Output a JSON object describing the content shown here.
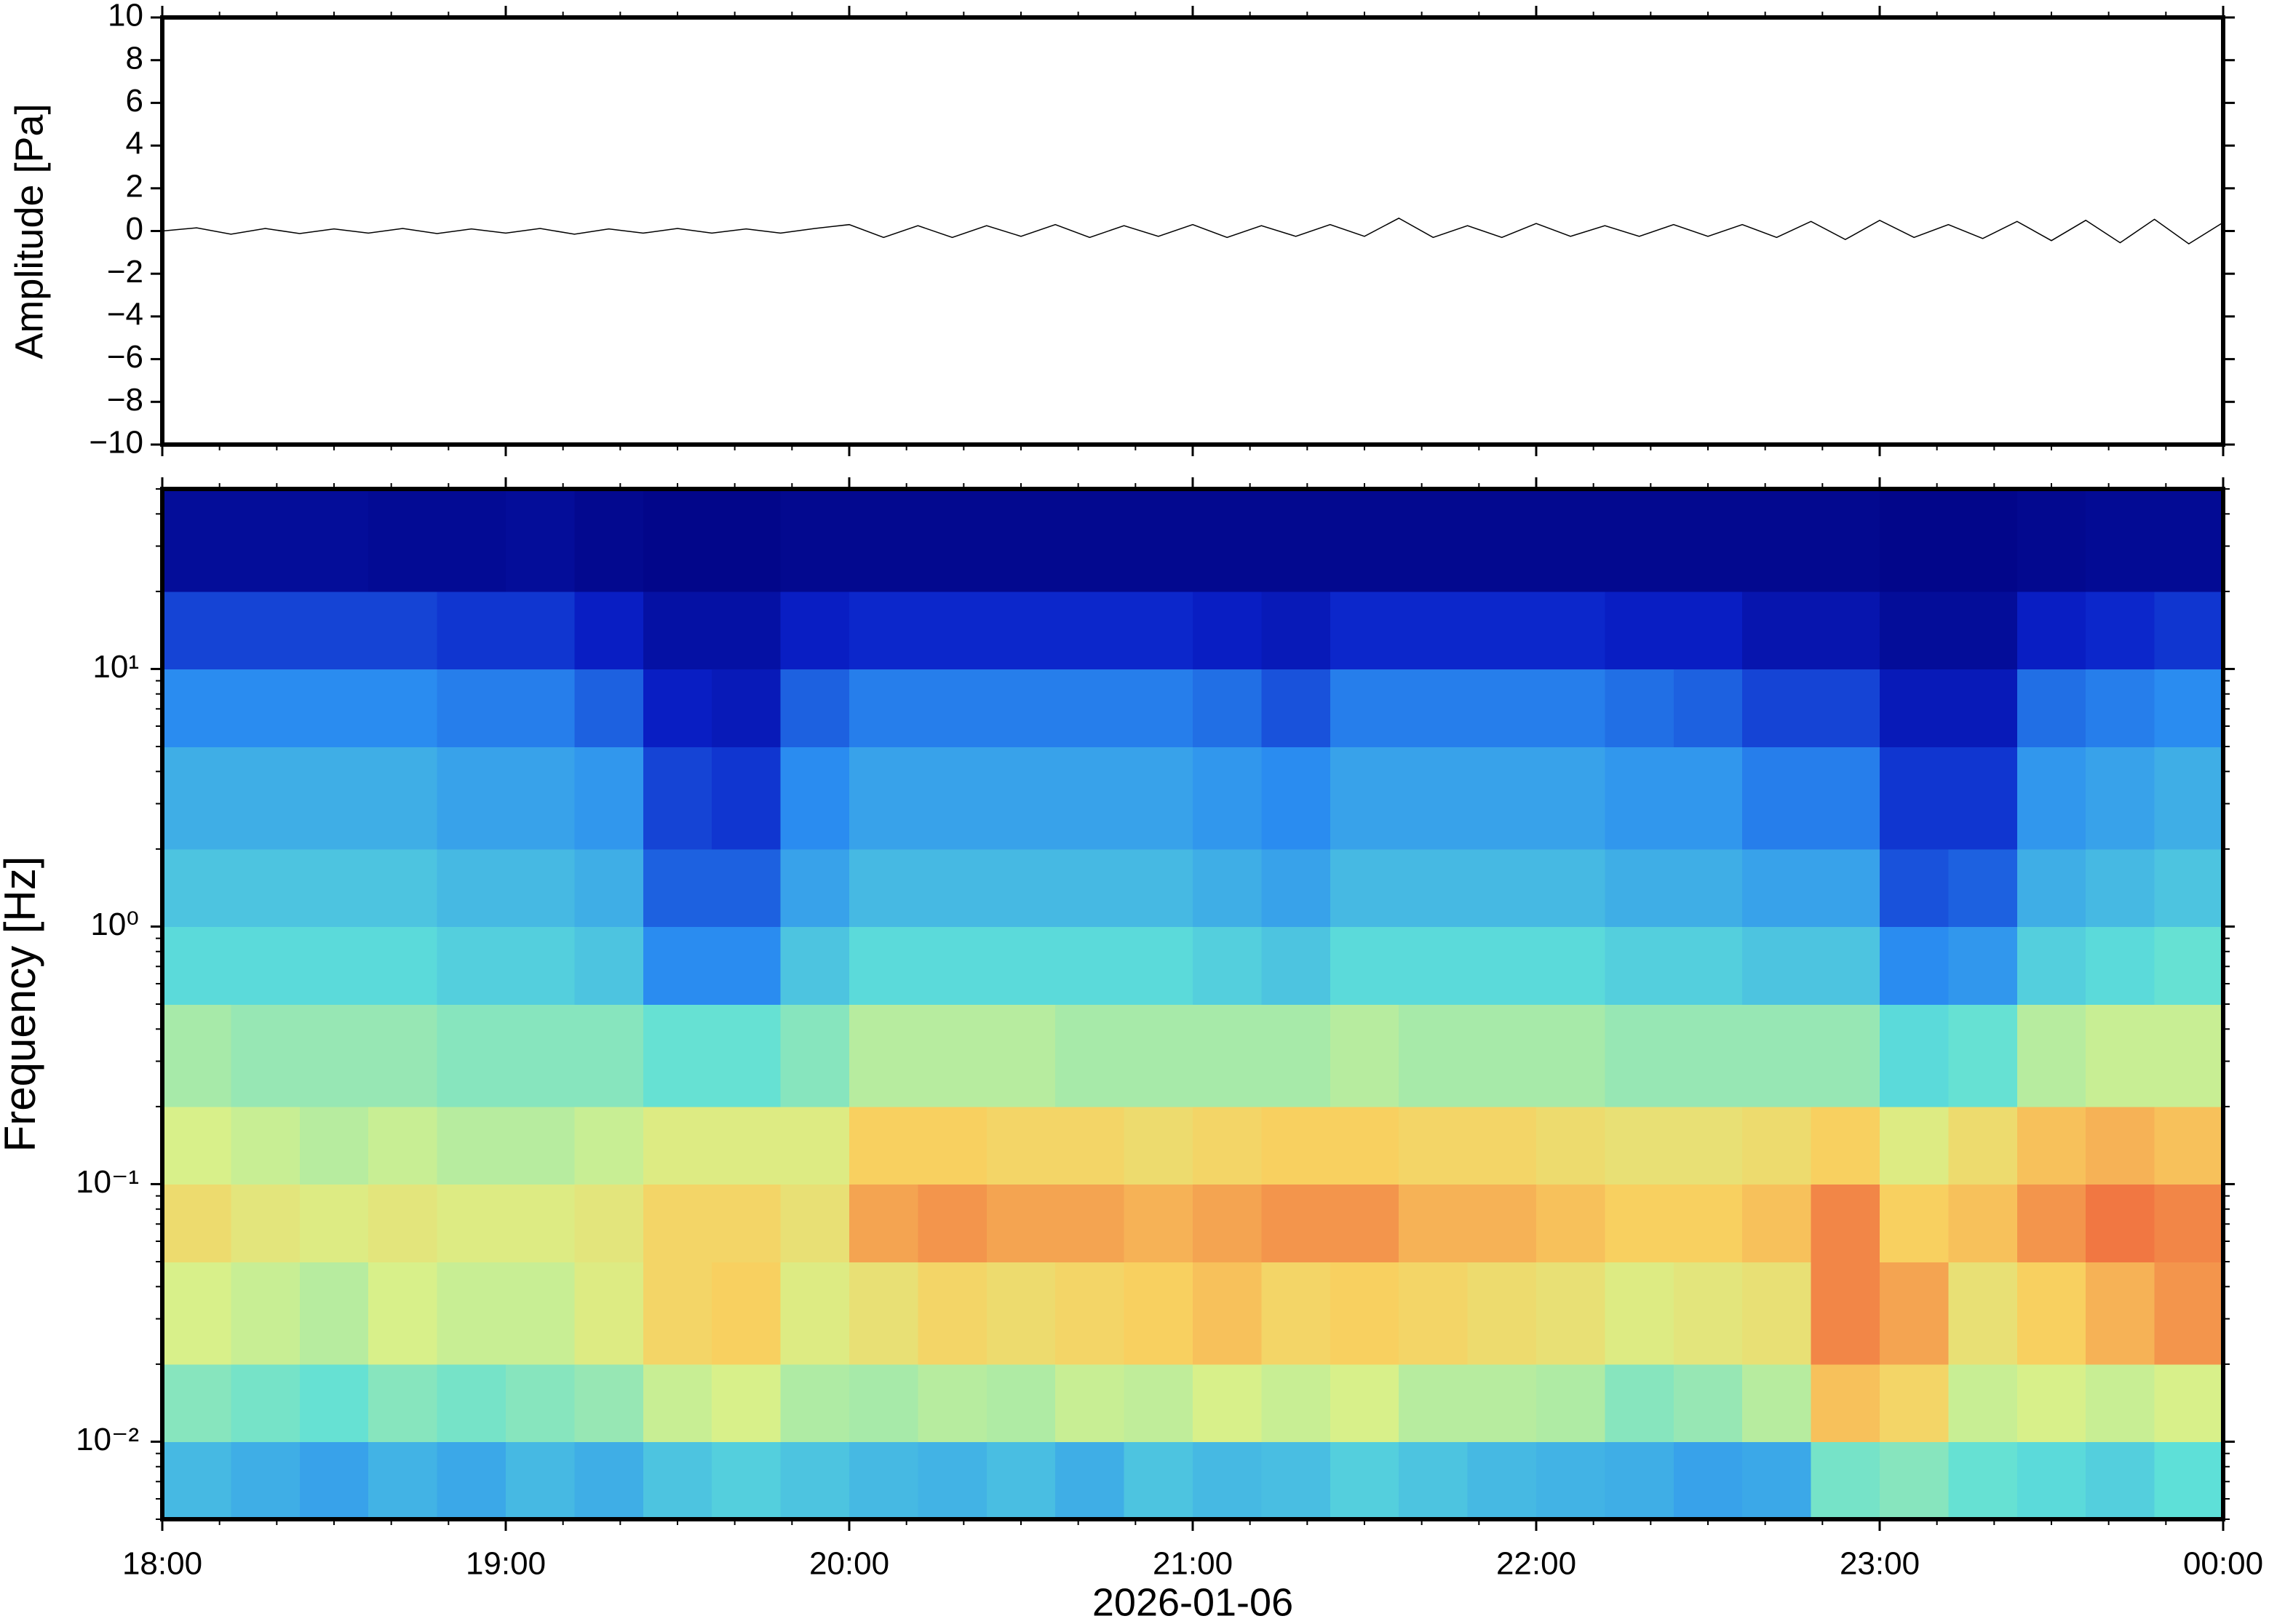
{
  "chart_data": [
    {
      "type": "line",
      "ylabel": "Amplitude [Pa]",
      "ylim": [
        -10,
        10
      ],
      "yticks": [
        {
          "value": -10,
          "label": "−10"
        },
        {
          "value": -8,
          "label": "−8"
        },
        {
          "value": -6,
          "label": "−6"
        },
        {
          "value": -4,
          "label": "−4"
        },
        {
          "value": -2,
          "label": "−2"
        },
        0,
        2,
        4,
        6,
        8,
        10
      ],
      "color": "#000000",
      "x": [
        18,
        18.1,
        18.2,
        18.3,
        18.4,
        18.5,
        18.6,
        18.7,
        18.8,
        18.9,
        19,
        19.1,
        19.2,
        19.3,
        19.4,
        19.5,
        19.6,
        19.7,
        19.8,
        19.9,
        20,
        20.1,
        20.2,
        20.3,
        20.4,
        20.5,
        20.6,
        20.7,
        20.8,
        20.9,
        21,
        21.1,
        21.2,
        21.3,
        21.4,
        21.5,
        21.6,
        21.7,
        21.8,
        21.9,
        22,
        22.1,
        22.2,
        22.3,
        22.4,
        22.5,
        22.6,
        22.7,
        22.8,
        22.9,
        23,
        23.1,
        23.2,
        23.3,
        23.4,
        23.5,
        23.6,
        23.7,
        23.8,
        23.9,
        24
      ],
      "values": [
        0,
        0.15,
        -0.15,
        0.12,
        -0.12,
        0.1,
        -0.1,
        0.12,
        -0.12,
        0.1,
        -0.1,
        0.12,
        -0.15,
        0.1,
        -0.1,
        0.12,
        -0.1,
        0.1,
        -0.1,
        0.12,
        0.3,
        -0.3,
        0.25,
        -0.3,
        0.25,
        -0.25,
        0.3,
        -0.3,
        0.25,
        -0.25,
        0.3,
        -0.3,
        0.25,
        -0.25,
        0.3,
        -0.25,
        0.6,
        -0.3,
        0.25,
        -0.3,
        0.35,
        -0.25,
        0.25,
        -0.25,
        0.3,
        -0.25,
        0.3,
        -0.3,
        0.45,
        -0.4,
        0.5,
        -0.3,
        0.3,
        -0.35,
        0.45,
        -0.45,
        0.5,
        -0.55,
        0.55,
        -0.6,
        0.4
      ]
    },
    {
      "type": "heatmap",
      "ylabel": "Frequency [Hz]",
      "xlabel": "2026-01-06",
      "xlim": [
        18,
        24
      ],
      "xticks": [
        {
          "value": 18,
          "label": "18:00"
        },
        {
          "value": 19,
          "label": "19:00"
        },
        {
          "value": 20,
          "label": "20:00"
        },
        {
          "value": 21,
          "label": "21:00"
        },
        {
          "value": 22,
          "label": "22:00"
        },
        {
          "value": 23,
          "label": "23:00"
        },
        {
          "value": 24,
          "label": "00:00"
        }
      ],
      "ylim": [
        0.005,
        50
      ],
      "log_y": true,
      "yticks": [
        {
          "value": 0.01,
          "label": "10⁻²"
        },
        {
          "value": 0.1,
          "label": "10⁻¹"
        },
        {
          "value": 1,
          "label": "10⁰"
        },
        {
          "value": 10,
          "label": "10¹"
        }
      ],
      "x_edges": [
        18,
        18.2,
        18.4,
        18.6,
        18.8,
        19,
        19.2,
        19.4,
        19.6,
        19.8,
        20,
        20.2,
        20.4,
        20.6,
        20.8,
        21,
        21.2,
        21.4,
        21.6,
        21.8,
        22,
        22.2,
        22.4,
        22.6,
        22.8,
        23,
        23.2,
        23.4,
        23.6,
        23.8,
        24
      ],
      "y_edges": [
        0.005,
        0.01,
        0.02,
        0.05,
        0.1,
        0.2,
        0.5,
        1,
        2,
        5,
        10,
        20,
        50
      ],
      "colorscale": [
        [
          0,
          "#00007a"
        ],
        [
          0.15,
          "#0a20c8"
        ],
        [
          0.3,
          "#2a8cf0"
        ],
        [
          0.45,
          "#5ee0d8"
        ],
        [
          0.6,
          "#d8f08a"
        ],
        [
          0.72,
          "#f8d060"
        ],
        [
          0.85,
          "#f07040"
        ],
        [
          1,
          "#d02020"
        ]
      ],
      "values": [
        [
          0.38,
          0.36,
          0.34,
          0.37,
          0.35,
          0.38,
          0.36,
          0.4,
          0.42,
          0.4,
          0.38,
          0.37,
          0.39,
          0.36,
          0.4,
          0.38,
          0.39,
          0.42,
          0.4,
          0.38,
          0.37,
          0.36,
          0.34,
          0.35,
          0.48,
          0.5,
          0.46,
          0.44,
          0.42,
          0.45
        ],
        [
          0.5,
          0.48,
          0.46,
          0.5,
          0.48,
          0.5,
          0.52,
          0.58,
          0.6,
          0.55,
          0.54,
          0.56,
          0.55,
          0.58,
          0.57,
          0.6,
          0.58,
          0.6,
          0.56,
          0.56,
          0.55,
          0.5,
          0.52,
          0.56,
          0.74,
          0.7,
          0.58,
          0.6,
          0.58,
          0.6
        ],
        [
          0.6,
          0.58,
          0.56,
          0.6,
          0.58,
          0.58,
          0.62,
          0.7,
          0.72,
          0.62,
          0.66,
          0.7,
          0.68,
          0.7,
          0.72,
          0.74,
          0.7,
          0.72,
          0.7,
          0.68,
          0.66,
          0.62,
          0.64,
          0.66,
          0.82,
          0.78,
          0.66,
          0.72,
          0.76,
          0.8
        ],
        [
          0.68,
          0.64,
          0.62,
          0.64,
          0.62,
          0.62,
          0.64,
          0.7,
          0.7,
          0.66,
          0.78,
          0.8,
          0.78,
          0.78,
          0.76,
          0.78,
          0.8,
          0.8,
          0.76,
          0.76,
          0.74,
          0.72,
          0.72,
          0.74,
          0.82,
          0.72,
          0.74,
          0.8,
          0.84,
          0.82
        ],
        [
          0.6,
          0.58,
          0.56,
          0.58,
          0.56,
          0.56,
          0.58,
          0.62,
          0.62,
          0.62,
          0.72,
          0.72,
          0.7,
          0.7,
          0.68,
          0.7,
          0.72,
          0.72,
          0.7,
          0.7,
          0.68,
          0.66,
          0.66,
          0.68,
          0.72,
          0.62,
          0.68,
          0.74,
          0.76,
          0.74
        ],
        [
          0.54,
          0.52,
          0.52,
          0.52,
          0.5,
          0.5,
          0.5,
          0.46,
          0.46,
          0.5,
          0.56,
          0.56,
          0.56,
          0.54,
          0.54,
          0.54,
          0.54,
          0.56,
          0.54,
          0.54,
          0.54,
          0.52,
          0.52,
          0.52,
          0.52,
          0.44,
          0.46,
          0.56,
          0.58,
          0.58
        ],
        [
          0.44,
          0.44,
          0.44,
          0.44,
          0.42,
          0.42,
          0.4,
          0.3,
          0.3,
          0.4,
          0.44,
          0.44,
          0.44,
          0.44,
          0.44,
          0.42,
          0.4,
          0.44,
          0.44,
          0.44,
          0.44,
          0.42,
          0.42,
          0.4,
          0.4,
          0.3,
          0.32,
          0.42,
          0.44,
          0.46
        ],
        [
          0.4,
          0.4,
          0.4,
          0.4,
          0.38,
          0.38,
          0.36,
          0.24,
          0.24,
          0.34,
          0.38,
          0.38,
          0.38,
          0.38,
          0.38,
          0.36,
          0.34,
          0.38,
          0.38,
          0.38,
          0.38,
          0.36,
          0.36,
          0.34,
          0.34,
          0.22,
          0.24,
          0.36,
          0.38,
          0.4
        ],
        [
          0.36,
          0.36,
          0.36,
          0.36,
          0.34,
          0.34,
          0.32,
          0.2,
          0.18,
          0.3,
          0.34,
          0.34,
          0.34,
          0.34,
          0.34,
          0.32,
          0.3,
          0.34,
          0.34,
          0.34,
          0.34,
          0.32,
          0.32,
          0.28,
          0.28,
          0.18,
          0.18,
          0.32,
          0.34,
          0.36
        ],
        [
          0.3,
          0.3,
          0.3,
          0.3,
          0.28,
          0.28,
          0.24,
          0.14,
          0.12,
          0.24,
          0.28,
          0.28,
          0.28,
          0.28,
          0.28,
          0.26,
          0.22,
          0.28,
          0.28,
          0.28,
          0.28,
          0.26,
          0.24,
          0.2,
          0.2,
          0.12,
          0.12,
          0.26,
          0.28,
          0.3
        ],
        [
          0.2,
          0.2,
          0.2,
          0.2,
          0.18,
          0.18,
          0.14,
          0.08,
          0.08,
          0.14,
          0.16,
          0.16,
          0.16,
          0.16,
          0.16,
          0.14,
          0.12,
          0.16,
          0.16,
          0.16,
          0.16,
          0.14,
          0.14,
          0.1,
          0.1,
          0.06,
          0.06,
          0.14,
          0.16,
          0.18
        ],
        [
          0.06,
          0.06,
          0.06,
          0.05,
          0.05,
          0.06,
          0.04,
          0.03,
          0.03,
          0.04,
          0.04,
          0.04,
          0.04,
          0.04,
          0.04,
          0.04,
          0.04,
          0.04,
          0.04,
          0.04,
          0.04,
          0.04,
          0.04,
          0.04,
          0.04,
          0.03,
          0.03,
          0.04,
          0.05,
          0.05
        ]
      ]
    }
  ]
}
